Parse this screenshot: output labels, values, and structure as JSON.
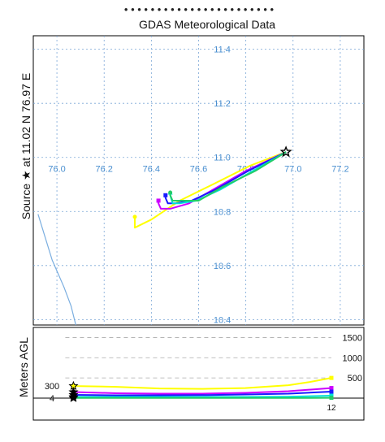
{
  "header": {
    "title_partial": "•  • • • • • • • • • • • • • • • • • • • • • •",
    "subtitle": "GDAS Meteorological Data"
  },
  "source_label": "Source ★ at  11.02 N  76.97 E",
  "colors": {
    "grid_map": "#7aa6d6",
    "tick_map": "#4a8fd0",
    "coast": "#7aaee0",
    "grid_alt": "#aaaaaa",
    "frame": "#000000",
    "yellow": "#ffff00",
    "magenta": "#cc00ff",
    "blue": "#1a1aff",
    "cyan": "#00e0d8",
    "green": "#22cc66"
  },
  "chart_data": [
    {
      "type": "line",
      "panel": "map",
      "x_ticks": [
        "76.0",
        "76.2",
        "76.4",
        "76.6",
        "76.8",
        "77.0",
        "77.2"
      ],
      "y_ticks": [
        "10.4",
        "10.6",
        "10.8",
        "11.0",
        "11.2",
        "11.4"
      ],
      "xlim": [
        75.9,
        77.3
      ],
      "ylim": [
        10.38,
        11.45
      ],
      "source": {
        "lon": 76.97,
        "lat": 11.02,
        "marker": "star"
      },
      "series": [
        {
          "color": "yellow",
          "end_marker": "circle",
          "points": [
            [
              76.97,
              11.02
            ],
            [
              76.82,
              10.97
            ],
            [
              76.66,
              10.9
            ],
            [
              76.52,
              10.84
            ],
            [
              76.4,
              10.77
            ],
            [
              76.33,
              10.74
            ],
            [
              76.33,
              10.77
            ],
            [
              76.33,
              10.78
            ]
          ]
        },
        {
          "color": "magenta",
          "end_marker": "square",
          "points": [
            [
              76.97,
              11.02
            ],
            [
              76.8,
              10.95
            ],
            [
              76.66,
              10.88
            ],
            [
              76.56,
              10.83
            ],
            [
              76.48,
              10.81
            ],
            [
              76.44,
              10.81
            ],
            [
              76.43,
              10.83
            ],
            [
              76.43,
              10.84
            ]
          ]
        },
        {
          "color": "blue",
          "end_marker": "square",
          "points": [
            [
              76.97,
              11.02
            ],
            [
              76.81,
              10.95
            ],
            [
              76.67,
              10.88
            ],
            [
              76.57,
              10.84
            ],
            [
              76.5,
              10.83
            ],
            [
              76.47,
              10.83
            ],
            [
              76.46,
              10.85
            ],
            [
              76.46,
              10.86
            ]
          ]
        },
        {
          "color": "cyan",
          "end_marker": "triangle",
          "points": [
            [
              76.97,
              11.02
            ],
            [
              76.83,
              10.95
            ],
            [
              76.69,
              10.88
            ],
            [
              76.59,
              10.84
            ],
            [
              76.52,
              10.83
            ],
            [
              76.49,
              10.83
            ],
            [
              76.48,
              10.86
            ],
            [
              76.48,
              10.87
            ]
          ]
        },
        {
          "color": "green",
          "end_marker": "circle",
          "points": [
            [
              76.97,
              11.02
            ],
            [
              76.84,
              10.95
            ],
            [
              76.7,
              10.89
            ],
            [
              76.6,
              10.84
            ],
            [
              76.53,
              10.84
            ],
            [
              76.49,
              10.84
            ],
            [
              76.48,
              10.86
            ],
            [
              76.48,
              10.87
            ]
          ]
        }
      ],
      "coastline": [
        [
          75.92,
          10.79
        ],
        [
          75.98,
          10.62
        ],
        [
          76.03,
          10.52
        ],
        [
          76.06,
          10.45
        ],
        [
          76.08,
          10.38
        ]
      ]
    },
    {
      "type": "line",
      "panel": "altitude",
      "ylabel": "Meters AGL",
      "y_ticks_right": [
        "1500",
        "1000",
        "500"
      ],
      "y_tick_values": [
        1500,
        1000,
        500
      ],
      "y_labels_left": [
        "300",
        "4"
      ],
      "ylim": [
        0,
        1750
      ],
      "x_label_right": "12",
      "x_hours": [
        0,
        12
      ],
      "series": [
        {
          "color": "yellow",
          "values": [
            [
              0,
              300
            ],
            [
              2,
              280
            ],
            [
              4,
              240
            ],
            [
              6,
              230
            ],
            [
              8,
              250
            ],
            [
              10,
              320
            ],
            [
              11,
              400
            ],
            [
              12,
              500
            ]
          ]
        },
        {
          "color": "magenta",
          "values": [
            [
              0,
              150
            ],
            [
              2,
              120
            ],
            [
              4,
              110
            ],
            [
              6,
              110
            ],
            [
              8,
              130
            ],
            [
              10,
              170
            ],
            [
              12,
              250
            ]
          ]
        },
        {
          "color": "blue",
          "values": [
            [
              0,
              80
            ],
            [
              2,
              70
            ],
            [
              4,
              70
            ],
            [
              6,
              75
            ],
            [
              8,
              90
            ],
            [
              10,
              110
            ],
            [
              12,
              160
            ]
          ]
        },
        {
          "color": "cyan",
          "values": [
            [
              0,
              30
            ],
            [
              2,
              30
            ],
            [
              4,
              30
            ],
            [
              6,
              30
            ],
            [
              8,
              30
            ],
            [
              10,
              35
            ],
            [
              12,
              60
            ]
          ]
        },
        {
          "color": "green",
          "values": [
            [
              0,
              4
            ],
            [
              2,
              4
            ],
            [
              4,
              4
            ],
            [
              6,
              4
            ],
            [
              8,
              4
            ],
            [
              10,
              5
            ],
            [
              12,
              8
            ]
          ]
        }
      ]
    }
  ]
}
